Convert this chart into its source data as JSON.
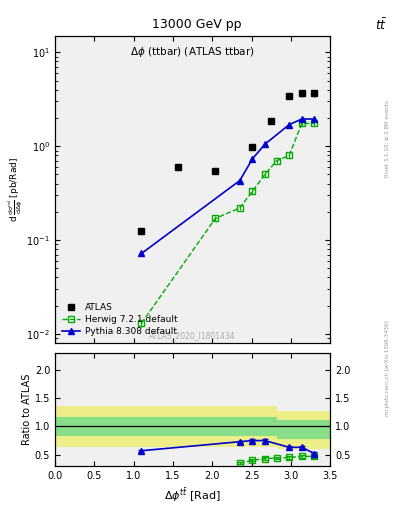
{
  "title_top": "13000 GeV pp",
  "title_right": "tt",
  "plot_title": "Δφ (ttbar) (ATLAS ttbar)",
  "ylabel_main": "d  dσ^nd/dΔφ  [pb/Rad]",
  "ylabel_ratio": "Ratio to ATLAS",
  "xlabel": "Δφ^{tbar{t}} [Rad]",
  "watermark": "ATLAS_2020_I1801434",
  "rivet_text": "Rivet 3.1.10; ≥ 2.8M events",
  "mcplots_text": "mcplots.cern.ch [arXiv:1306.3436]",
  "atlas_x": [
    1.1,
    1.57,
    2.04,
    2.51,
    2.75,
    2.98,
    3.14,
    3.3
  ],
  "atlas_y": [
    0.125,
    0.6,
    0.55,
    0.98,
    1.85,
    3.4,
    3.65,
    3.65
  ],
  "atlas_yerr": [
    0.01,
    0.04,
    0.04,
    0.06,
    0.12,
    0.22,
    0.28,
    0.28
  ],
  "herwig_x": [
    1.1,
    2.04,
    2.35,
    2.51,
    2.67,
    2.82,
    2.98,
    3.14,
    3.3
  ],
  "herwig_y": [
    0.013,
    0.17,
    0.22,
    0.33,
    0.5,
    0.7,
    0.8,
    1.75,
    1.75
  ],
  "herwig_yerr": [
    0.001,
    0.01,
    0.012,
    0.018,
    0.025,
    0.035,
    0.042,
    0.09,
    0.09
  ],
  "pythia_x": [
    1.1,
    2.35,
    2.51,
    2.67,
    2.98,
    3.14,
    3.3
  ],
  "pythia_y": [
    0.072,
    0.43,
    0.73,
    1.05,
    1.7,
    1.95,
    1.95
  ],
  "pythia_yerr": [
    0.005,
    0.025,
    0.04,
    0.055,
    0.09,
    0.11,
    0.11
  ],
  "ratio_pythia_x": [
    1.1,
    2.35,
    2.51,
    2.67,
    2.98,
    3.14,
    3.3
  ],
  "ratio_pythia_y": [
    0.57,
    0.73,
    0.75,
    0.75,
    0.63,
    0.63,
    0.52
  ],
  "ratio_pythia_yerr": [
    0.02,
    0.02,
    0.02,
    0.025,
    0.025,
    0.025,
    0.025
  ],
  "ratio_herwig_x": [
    2.35,
    2.51,
    2.67,
    2.82,
    2.98,
    3.14,
    3.3
  ],
  "ratio_herwig_y": [
    0.35,
    0.4,
    0.43,
    0.44,
    0.45,
    0.47,
    0.47
  ],
  "ratio_herwig_yerr": [
    0.015,
    0.018,
    0.02,
    0.02,
    0.022,
    0.023,
    0.023
  ],
  "band_step_x": [
    0.0,
    1.1,
    1.1,
    2.82,
    2.82,
    3.5
  ],
  "band_green_lo": [
    0.83,
    0.83,
    0.83,
    0.83,
    0.77,
    0.77
  ],
  "band_green_hi": [
    1.17,
    1.17,
    1.17,
    1.17,
    1.12,
    1.12
  ],
  "band_yellow_lo": [
    0.63,
    0.63,
    0.63,
    0.63,
    0.6,
    0.6
  ],
  "band_yellow_hi": [
    1.37,
    1.37,
    1.37,
    1.37,
    1.27,
    1.27
  ],
  "xlim": [
    0,
    3.5
  ],
  "ylim_main_log": [
    0.008,
    15
  ],
  "ylim_ratio": [
    0.3,
    2.3
  ],
  "ratio_yticks": [
    0.5,
    1.0,
    1.5,
    2.0
  ],
  "color_atlas": "#000000",
  "color_herwig": "#00aa00",
  "color_pythia": "#0000cc",
  "color_band_green": "#88dd88",
  "color_band_yellow": "#eeee88",
  "bg_color": "#f0f0f0"
}
